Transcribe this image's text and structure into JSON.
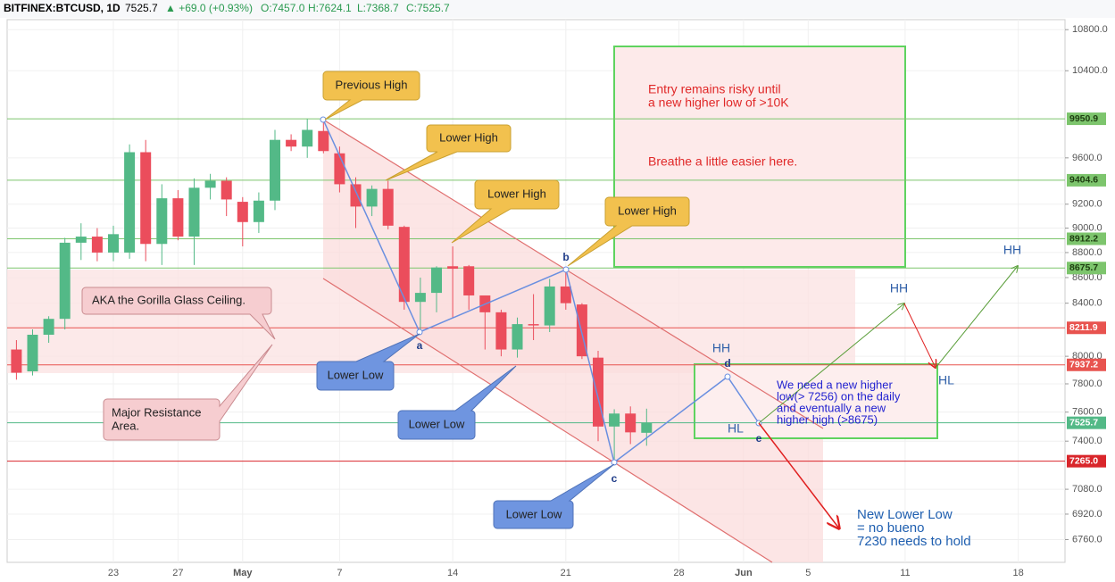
{
  "header": {
    "symbol": "BITFINEX:BTCUSD, 1D",
    "last": "7525.7",
    "change": "▲ +69.0 (+0.93%)",
    "open": "O:7457.0",
    "high": "H:7624.1",
    "low": "L:7368.7",
    "close": "C:7525.7"
  },
  "chart_data": {
    "type": "candlestick",
    "categories": [
      null,
      null,
      null,
      null,
      null,
      null,
      "23",
      null,
      null,
      null,
      "27",
      null,
      null,
      null,
      "May",
      null,
      null,
      null,
      null,
      null,
      "7",
      null,
      null,
      null,
      null,
      null,
      null,
      "14",
      null,
      null,
      null,
      null,
      null,
      null,
      "21",
      null,
      null,
      null,
      null,
      null,
      null,
      "28",
      null,
      null,
      null,
      "Jun",
      null,
      null,
      null,
      "5",
      null,
      null,
      null,
      null,
      null,
      "11",
      null,
      null,
      null,
      null,
      null,
      null,
      "18",
      null,
      null
    ],
    "open": [
      8050,
      7890,
      8160,
      8280,
      8880,
      8930,
      8800,
      8800,
      9650,
      8870,
      9250,
      8930,
      9340,
      9400,
      9220,
      9050,
      9230,
      9760,
      9700,
      9840,
      9640,
      9370,
      9180,
      9330,
      9010,
      8410,
      8480,
      8690,
      8690,
      8460,
      8330,
      8050,
      8240,
      8230,
      8530,
      8390,
      7990,
      7500,
      7590,
      7457,
      null,
      null,
      null,
      null,
      null,
      null,
      null,
      null,
      null,
      null,
      null,
      null,
      null,
      null,
      null,
      null,
      null,
      null,
      null,
      null,
      null,
      null,
      null,
      null,
      null
    ],
    "high": [
      8120,
      8200,
      8300,
      8920,
      9040,
      9000,
      9020,
      9720,
      9760,
      9370,
      9320,
      9420,
      9460,
      9430,
      9260,
      9300,
      9850,
      9810,
      9950,
      9950,
      9700,
      9430,
      9360,
      9400,
      9020,
      8600,
      8690,
      8850,
      8700,
      8460,
      8350,
      8290,
      8470,
      8590,
      8660,
      8400,
      8040,
      7620,
      7640,
      7624.1,
      null,
      null,
      null,
      null,
      null,
      null,
      null,
      null,
      null,
      null,
      null,
      null,
      null,
      null,
      null,
      null,
      null,
      null,
      null,
      null,
      null,
      null,
      null,
      null,
      null
    ],
    "low": [
      7830,
      7860,
      8100,
      8200,
      8740,
      8730,
      8730,
      8750,
      8730,
      8700,
      8900,
      8700,
      9240,
      9100,
      8850,
      8960,
      9150,
      9660,
      9600,
      9640,
      9300,
      9000,
      9100,
      8990,
      8350,
      8200,
      8330,
      8290,
      8350,
      8050,
      8000,
      7990,
      8120,
      8180,
      8350,
      7980,
      7400,
      7270,
      7380,
      7368.7,
      null,
      null,
      null,
      null,
      null,
      null,
      null,
      null,
      null,
      null,
      null,
      null,
      null,
      null,
      null,
      null,
      null,
      null,
      null,
      null,
      null,
      null,
      null,
      null,
      null
    ],
    "close": [
      7880,
      8160,
      8280,
      8880,
      8930,
      8800,
      8950,
      9650,
      8870,
      9250,
      8930,
      9340,
      9400,
      9240,
      9050,
      9230,
      9760,
      9700,
      9850,
      9660,
      9370,
      9180,
      9330,
      9020,
      8410,
      8480,
      8680,
      8670,
      8460,
      8330,
      8050,
      8240,
      8230,
      8530,
      8400,
      8000,
      7500,
      7590,
      7460,
      7525.7,
      null,
      null,
      null,
      null,
      null,
      null,
      null,
      null,
      null,
      null,
      null,
      null,
      null,
      null,
      null,
      null,
      null,
      null,
      null,
      null,
      null,
      null,
      null,
      null,
      null
    ],
    "up_color": "#53b987",
    "down_color": "#eb4d5c",
    "log_scale": true,
    "grid": true,
    "ylim": [
      6620,
      10900
    ],
    "yticks": [
      {
        "value": 6760,
        "label": "6760.0"
      },
      {
        "value": 6920,
        "label": "6920.0"
      },
      {
        "value": 7080,
        "label": "7080.0"
      },
      {
        "value": 7400,
        "label": "7400.0"
      },
      {
        "value": 7600,
        "label": "7600.0"
      },
      {
        "value": 7800,
        "label": "7800.0"
      },
      {
        "value": 8000,
        "label": "8000.0"
      },
      {
        "value": 8400,
        "label": "8400.0"
      },
      {
        "value": 8600,
        "label": "8600.0"
      },
      {
        "value": 8800,
        "label": "8800.0"
      },
      {
        "value": 9000,
        "label": "9000.0"
      },
      {
        "value": 9200,
        "label": "9200.0"
      },
      {
        "value": 9600,
        "label": "9600.0"
      },
      {
        "value": 10400,
        "label": "10400.0"
      },
      {
        "value": 10800,
        "label": "10800.0"
      }
    ],
    "levels": [
      {
        "value": 9950.9,
        "label": "9950.9",
        "color": "#7dc56d"
      },
      {
        "value": 9404.6,
        "label": "9404.6",
        "color": "#7dc56d"
      },
      {
        "value": 8912.2,
        "label": "8912.2",
        "color": "#7dc56d"
      },
      {
        "value": 8675.7,
        "label": "8675.7",
        "color": "#7dc56d"
      },
      {
        "value": 8211.9,
        "label": "8211.9",
        "color": "#e8534f"
      },
      {
        "value": 7937.2,
        "label": "7937.2",
        "color": "#e8534f"
      },
      {
        "value": 7525.7,
        "label": "7525.7",
        "color": "#53b987"
      },
      {
        "value": 7265.0,
        "label": "7265.0",
        "color": "#d9262b"
      }
    ],
    "annotations": {
      "previous_high": "Previous High",
      "lower_high_1": "Lower High",
      "lower_high_2": "Lower High",
      "lower_high_3": "Lower High",
      "gorilla": "AKA the Gorilla Glass Ceiling.",
      "major": [
        "Major Resistance",
        "Area."
      ],
      "lower_low_1": "Lower Low",
      "lower_low_2": "Lower Low",
      "lower_low_3": "Lower Low",
      "entry": [
        "Entry remains risky until",
        "a new higher low of >10K"
      ],
      "breathe": "Breathe a little easier here.",
      "need": [
        "We need a new higher",
        "low(> 7256) on the daily",
        "and eventually a new",
        "higher high (>8675)"
      ],
      "new_low": [
        "New Lower Low",
        "= no bueno",
        "7230 needs to hold"
      ],
      "a": "a",
      "b": "b",
      "c": "c",
      "d": "d",
      "e": "e",
      "hh_d": "HH",
      "hl_e": "HL",
      "hh_1": "HH",
      "hl_1": "HL",
      "hh_2": "HH"
    }
  }
}
